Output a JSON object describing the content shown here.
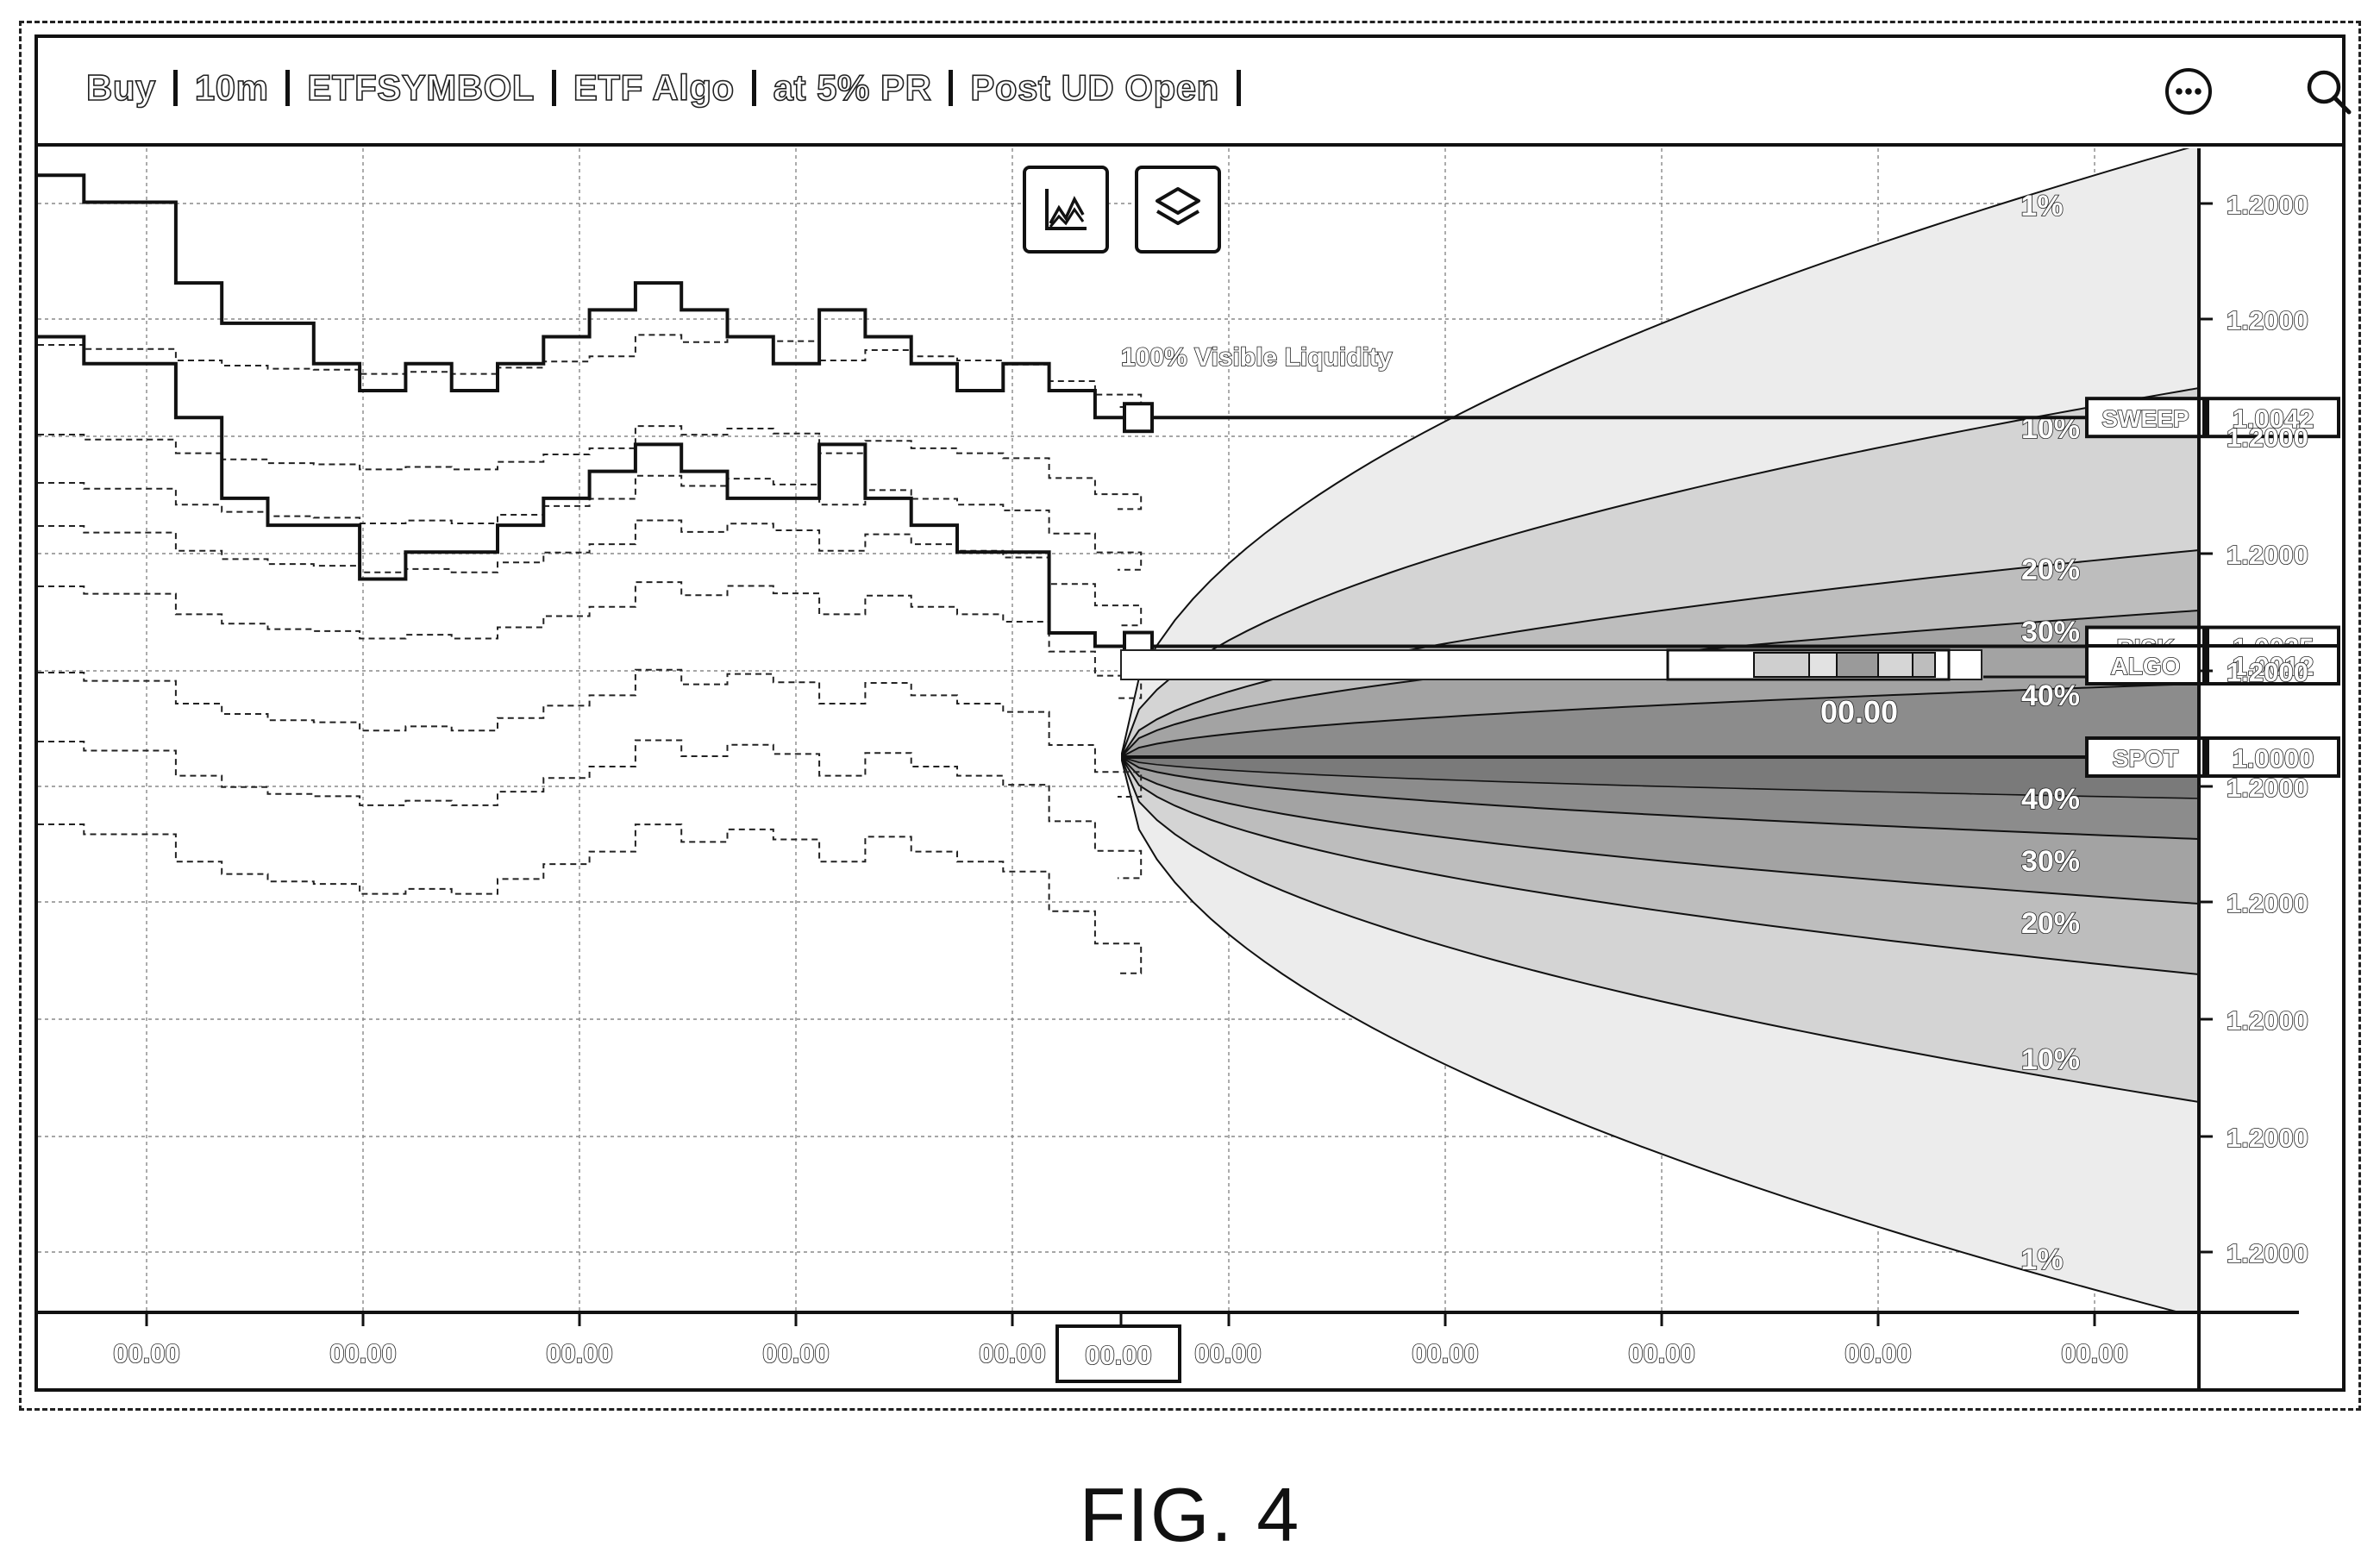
{
  "toolbar": {
    "items": [
      "Buy",
      "10m",
      "ETFSYMBOL",
      "ETF Algo",
      "at 5% PR",
      "Post UD Open"
    ],
    "more_icon": "more-icon",
    "search_icon": "search-icon"
  },
  "float_buttons": [
    {
      "name": "chart-mode-button",
      "icon": "line-chart-icon"
    },
    {
      "name": "layers-button",
      "icon": "layers-icon"
    }
  ],
  "annotation": "100% Visible Liquidity",
  "markers": [
    {
      "label": "SWEEP",
      "value": "1.0042"
    },
    {
      "label": "RISK",
      "value": "1.0025"
    },
    {
      "label": "ALGO",
      "value": "1.0012"
    },
    {
      "label": "SPOT",
      "value": "1.0000"
    }
  ],
  "algo_time_label": "00.00",
  "y_tick_labels": [
    "1.2000",
    "1.2000",
    "1.2000",
    "1.2000",
    "1.2000",
    "1.2000",
    "1.2000",
    "1.2000",
    "1.2000",
    "1.2000"
  ],
  "x_tick_labels": [
    "00.00",
    "00.00",
    "00.00",
    "00.00",
    "00.00",
    "00.00",
    "00.00",
    "00.00",
    "00.00",
    "00.00",
    "00.00"
  ],
  "current_time_label": "00.00",
  "cone_labels_upper": [
    "1%",
    "10%",
    "20%",
    "30%",
    "40%"
  ],
  "cone_labels_lower": [
    "40%",
    "30%",
    "20%",
    "10%",
    "1%"
  ],
  "colors": {
    "ink": "#111111",
    "cone_1": "#ececec",
    "cone_10": "#d4d4d4",
    "cone_20": "#bdbdbd",
    "cone_30": "#a3a3a3",
    "cone_40": "#8c8c8c",
    "cone_core": "#7a7a7a"
  },
  "caption": "FIG. 4",
  "chart_data": {
    "type": "line",
    "series": [
      {
        "values": [
          1.006,
          1.0058,
          1.0058,
          1.0052,
          1.0049,
          1.0049,
          1.0046,
          1.0044,
          1.0046,
          1.0044,
          1.0046,
          1.0048,
          1.005,
          1.0052,
          1.005,
          1.0048,
          1.0046,
          1.005,
          1.0048,
          1.0046,
          1.0044,
          1.0046,
          1.0044,
          1.0042,
          1.0042
        ]
      },
      {
        "values": [
          1.0048,
          1.0046,
          1.0046,
          1.0042,
          1.0036,
          1.0034,
          1.0034,
          1.003,
          1.0032,
          1.0032,
          1.0034,
          1.0036,
          1.0038,
          1.004,
          1.0038,
          1.0036,
          1.0036,
          1.004,
          1.0036,
          1.0034,
          1.0032,
          1.0032,
          1.0026,
          1.0025,
          1.0025
        ]
      }
    ],
    "ylim": [
      0.998,
      1.0062
    ]
  }
}
